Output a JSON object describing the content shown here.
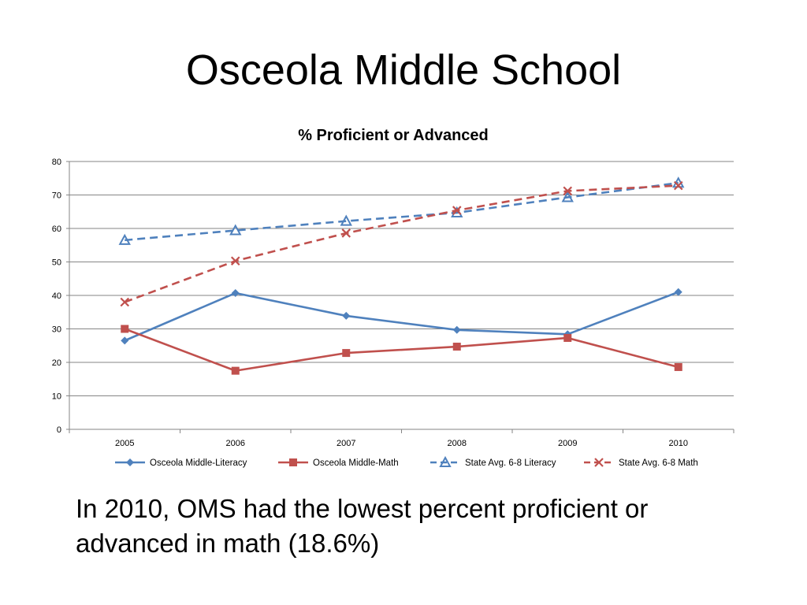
{
  "slide": {
    "title": "Osceola Middle School",
    "caption": "In 2010, OMS had the lowest percent proficient or advanced in math (18.6%)"
  },
  "chart_data": {
    "type": "line",
    "title": "% Proficient or Advanced",
    "xlabel": "",
    "ylabel": "",
    "categories": [
      "2005",
      "2006",
      "2007",
      "2008",
      "2009",
      "2010"
    ],
    "ylim": [
      0,
      80
    ],
    "yticks": [
      "0",
      "10",
      "20",
      "30",
      "40",
      "50",
      "60",
      "70",
      "80"
    ],
    "grid": true,
    "legend_position": "bottom",
    "series": [
      {
        "name": "Osceola Middle-Literacy",
        "values": [
          26.5,
          40.7,
          33.9,
          29.7,
          28.4,
          41.0
        ],
        "color": "#4F81BD",
        "dash": "solid",
        "marker": "diamond"
      },
      {
        "name": "Osceola Middle-Math",
        "values": [
          30.0,
          17.5,
          22.8,
          24.7,
          27.3,
          18.6
        ],
        "color": "#C0504D",
        "dash": "solid",
        "marker": "square"
      },
      {
        "name": "State Avg. 6-8 Literacy",
        "values": [
          56.5,
          59.4,
          62.2,
          64.7,
          69.3,
          73.6
        ],
        "color": "#4F81BD",
        "dash": "dashed",
        "marker": "triangle"
      },
      {
        "name": "State Avg. 6-8 Math",
        "values": [
          38.0,
          50.3,
          58.6,
          65.4,
          71.2,
          72.8
        ],
        "color": "#C0504D",
        "dash": "dashed",
        "marker": "x"
      }
    ]
  }
}
